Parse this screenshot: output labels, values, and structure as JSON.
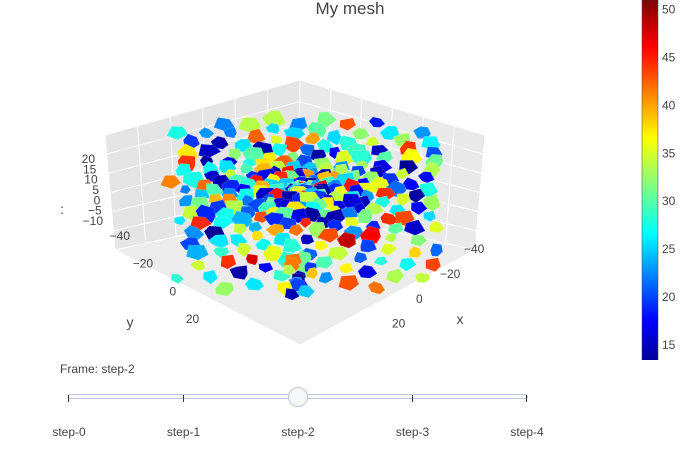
{
  "chart_data": {
    "type": "mesh3d",
    "title": "My mesh",
    "axes": {
      "x": {
        "title": "x",
        "ticks": [
          -40,
          -20,
          0,
          20
        ]
      },
      "y": {
        "title": "y",
        "ticks": [
          -40,
          -20,
          0,
          20
        ]
      },
      "z": {
        "title": ":",
        "ticks": [
          -10,
          -5,
          0,
          5,
          10,
          15,
          20
        ]
      }
    },
    "colorscale": "Jet",
    "colorbar": {
      "ticks": [
        15,
        20,
        25,
        30,
        35,
        40,
        45,
        50
      ],
      "range": [
        13,
        51
      ]
    },
    "surface": {
      "x_range": [
        -45,
        30
      ],
      "y_range": [
        -40,
        25
      ],
      "description": "dome-shaped mesh of polygonal cells colored by value",
      "z_peak": 17,
      "z_edge": -8
    }
  },
  "slider": {
    "label_prefix": "Frame: ",
    "current": "step-2",
    "current_index": 2,
    "steps": [
      "step-0",
      "step-1",
      "step-2",
      "step-3",
      "step-4"
    ]
  },
  "colors": {
    "grid": "#ffffff",
    "wall": "#e5e5e5",
    "accent_low": "#00008b",
    "accent_high": "#8b0000"
  }
}
